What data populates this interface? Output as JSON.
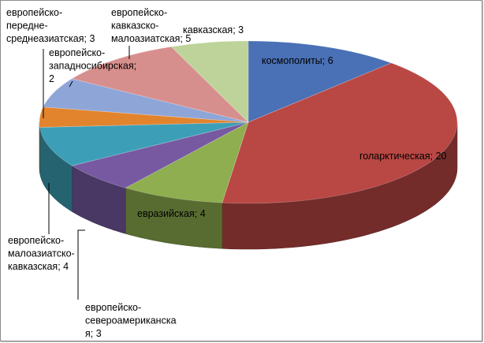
{
  "chart_data": {
    "type": "pie",
    "slices": [
      {
        "label": "космополиты",
        "value": 6,
        "color": "#4a70b5",
        "label_lines": [
          "космополиты; 6"
        ]
      },
      {
        "label": "голарктическая",
        "value": 20,
        "color": "#b94744",
        "label_lines": [
          "голарктическая; 20"
        ]
      },
      {
        "label": "евразийская",
        "value": 4,
        "color": "#8eae4f",
        "label_lines": [
          "евразийская; 4"
        ]
      },
      {
        "label": "европейско-североамериканская",
        "value": 3,
        "color": "#7659a1",
        "label_lines": [
          "европейско-",
          "североамериканска",
          "я; 3"
        ]
      },
      {
        "label": "европейско-малоазиатско-кавказская",
        "value": 4,
        "color": "#3c9fb7",
        "label_lines": [
          "европейско-",
          "малоазиатско-",
          "кавказская; 4"
        ]
      },
      {
        "label": "европейско-западносибирская",
        "value": 2,
        "color": "#e2842e",
        "label_lines": [
          "европейско-",
          "западносибирская;",
          "2"
        ]
      },
      {
        "label": "европейско-переднесреднеазиатская",
        "value": 3,
        "color": "#8ea5d8",
        "label_lines": [
          "европейско-",
          "передне-",
          "среднеазиатская; 3"
        ]
      },
      {
        "label": "европейско-кавказско-малоазиатская",
        "value": 5,
        "color": "#d78f8d",
        "label_lines": [
          "европейско-",
          "кавказско-",
          "малоазиатская; 5"
        ]
      },
      {
        "label": "кавказская",
        "value": 3,
        "color": "#bdd39a",
        "label_lines": [
          "кавказская; 3"
        ]
      }
    ],
    "legend": false,
    "style": "3d"
  }
}
